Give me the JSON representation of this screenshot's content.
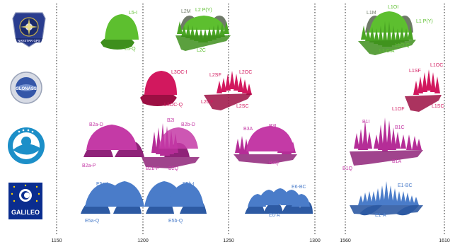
{
  "axis": {
    "ticks": [
      "1150",
      "1200",
      "1250",
      "1300",
      "1560",
      "1610"
    ]
  },
  "colors": {
    "gps": "#5dbf2f",
    "gps_dark": "#3e8f1c",
    "gps_grey": "#6f7a68",
    "glonass": "#d2185e",
    "glonass_dark": "#9c0f43",
    "beidou": "#c43aa6",
    "beidou_dark": "#8f2379",
    "galileo": "#4a7cc9",
    "galileo_dark": "#2d5aa3"
  },
  "logos": {
    "gps_text": "NAVSTAR GPS",
    "glonass_text": "GLONASS",
    "galileo_text": "GALILEO"
  },
  "gps": {
    "l5i": "L5-I",
    "l5q": "L5-Q",
    "l2m": "L2M",
    "l2py": "L2 P(Y)",
    "l2c": "L2C",
    "l1m": "L1M",
    "l1oi": "L1OI",
    "l1py": "L1 P(Y)",
    "l1oq": "L1O-Q",
    "l1ca": "L1 C/A"
  },
  "glonass": {
    "l3oci": "L3OC-I",
    "l3ocq": "L3OC-Q",
    "l2sf": "L2SF",
    "l2oc": "L2OC",
    "l2of": "L2OF",
    "l2sc": "L2SC",
    "l1sf": "L1SF",
    "l1oc": "L1OC",
    "l1of": "L1OF",
    "l1sc": "L1SC"
  },
  "beidou": {
    "b2ad": "B2a-D",
    "b2ap": "B2a-P",
    "b2i": "B2I",
    "b2bd": "B2b-D",
    "b2bp": "B2b-P",
    "b2q": "B2Q",
    "b3a": "B3A",
    "b3i": "B3I",
    "b3q": "B3Q",
    "b1i": "B1I",
    "b1c": "B1C",
    "b1a": "B1A",
    "b1q": "B1Q"
  },
  "galileo": {
    "e5ai": "E5a-I",
    "e5bi": "E5b-I",
    "e5aq": "E5a-Q",
    "e5bq": "E5b-Q",
    "e6bc": "E6-BC",
    "e6a": "E6-A",
    "e1bc": "E1-BC",
    "e1a": "E1-A"
  }
}
